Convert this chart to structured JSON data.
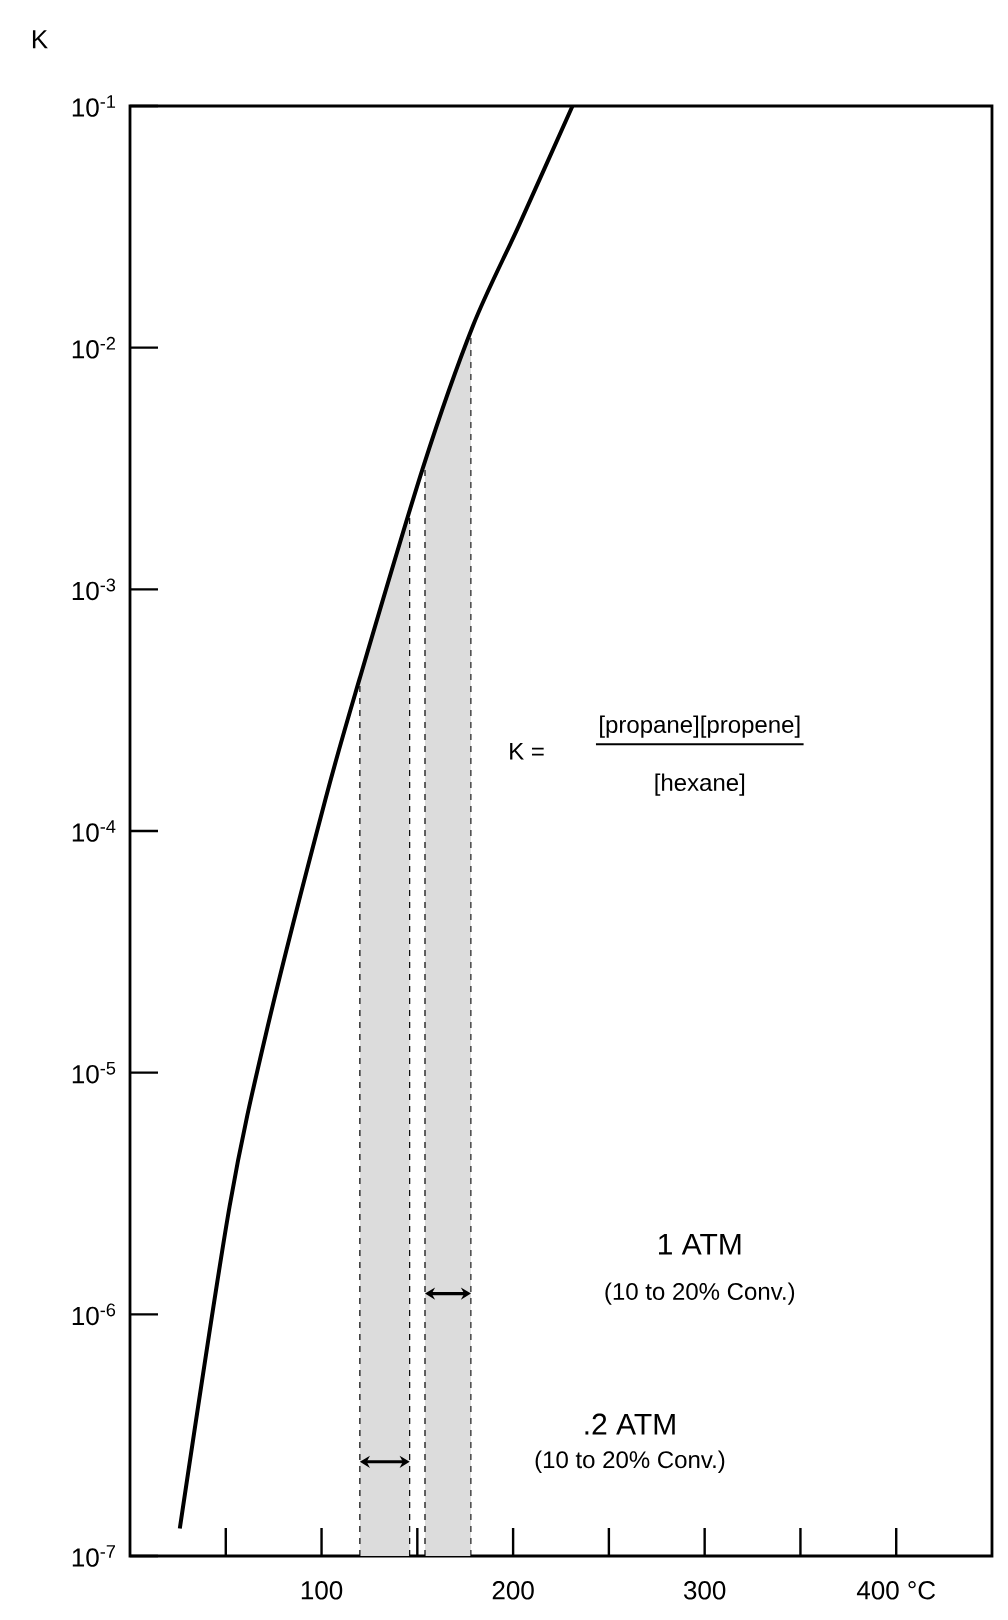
{
  "chart_data": {
    "type": "line",
    "ylabel": "K",
    "log": "y",
    "xlim": [
      0,
      450
    ],
    "ylim": [
      1e-07,
      0.1
    ],
    "xticks": [
      {
        "value": 50,
        "label": null
      },
      100,
      {
        "value": 150,
        "label": null
      },
      200,
      {
        "value": 250,
        "label": null
      },
      300,
      {
        "value": 350,
        "label": null
      },
      {
        "value": 400,
        "label": "400 °C"
      }
    ],
    "yticks": [
      {
        "value": 1e-07,
        "label": "10$^{-7}$"
      },
      {
        "value": 1e-06,
        "label": "10$^{-6}$"
      },
      {
        "value": 1e-05,
        "label": "10$^{-5}$"
      },
      {
        "value": 0.0001,
        "label": "10$^{-4}$"
      },
      {
        "value": 0.001,
        "label": "10$^{-3}$"
      },
      {
        "value": 0.01,
        "label": "10$^{-2}$"
      },
      {
        "value": 0.1,
        "label": "10$^{-1}$"
      }
    ],
    "series": [
      {
        "color": "#000000",
        "x": [
          26,
          52,
          71,
          102,
          120,
          153,
          179,
          203,
          231
        ],
        "values": [
          1.3e-07,
          2.8e-06,
          1.45e-05,
          0.000135,
          0.00043,
          0.0032,
          0.0123,
          0.032,
          0.1
        ]
      }
    ],
    "bands": [
      {
        "axis": "x",
        "from": 154,
        "to": 178,
        "color": "#dcdcdc"
      },
      {
        "axis": "x",
        "from": 120,
        "to": 146,
        "color": "#dcdcdc"
      }
    ],
    "annotations": [
      "K =",
      "[propane][propene]",
      "[hexane]",
      "1 ATM",
      "(10 to 20% Conv.)",
      ".2 ATM",
      "(10 to 20% Conv.)"
    ],
    "grid": false
  }
}
